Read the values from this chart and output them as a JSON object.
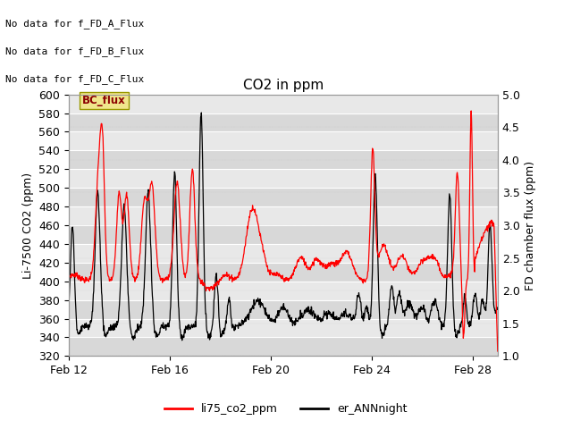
{
  "title": "CO2 in ppm",
  "ylabel_left": "Li-7500 CO2 (ppm)",
  "ylabel_right": "FD chamber flux (ppm)",
  "ylim_left": [
    320,
    600
  ],
  "ylim_right": [
    1.0,
    5.0
  ],
  "yticks_left": [
    320,
    340,
    360,
    380,
    400,
    420,
    440,
    460,
    480,
    500,
    520,
    540,
    560,
    580,
    600
  ],
  "yticks_right": [
    1.0,
    1.5,
    2.0,
    2.5,
    3.0,
    3.5,
    4.0,
    4.5,
    5.0
  ],
  "xtick_labels": [
    "Feb 12",
    "Feb 16",
    "Feb 20",
    "Feb 24",
    "Feb 28"
  ],
  "xtick_positions": [
    0,
    4,
    8,
    12,
    16
  ],
  "xlim": [
    0,
    17
  ],
  "no_data_texts": [
    "No data for f_FD_A_Flux",
    "No data for f_FD_B_Flux",
    "No data for f_FD_C_Flux"
  ],
  "legend_box_label": "BC_flux",
  "legend_box_color": "#f0e68c",
  "legend_box_border": "#999900",
  "legend_box_text_color": "#8b0000",
  "line1_color": "#ff0000",
  "line2_color": "#000000",
  "legend_label1": "li75_co2_ppm",
  "legend_label2": "er_ANNnight",
  "plot_bg_color": "#e0e0e0",
  "band_color_light": "#e8e8e8",
  "band_color_dark": "#d8d8d8",
  "fig_bg_color": "#ffffff",
  "grid_color": "#ffffff",
  "title_fontsize": 11,
  "tick_fontsize": 9,
  "label_fontsize": 9,
  "nodata_fontsize": 8
}
